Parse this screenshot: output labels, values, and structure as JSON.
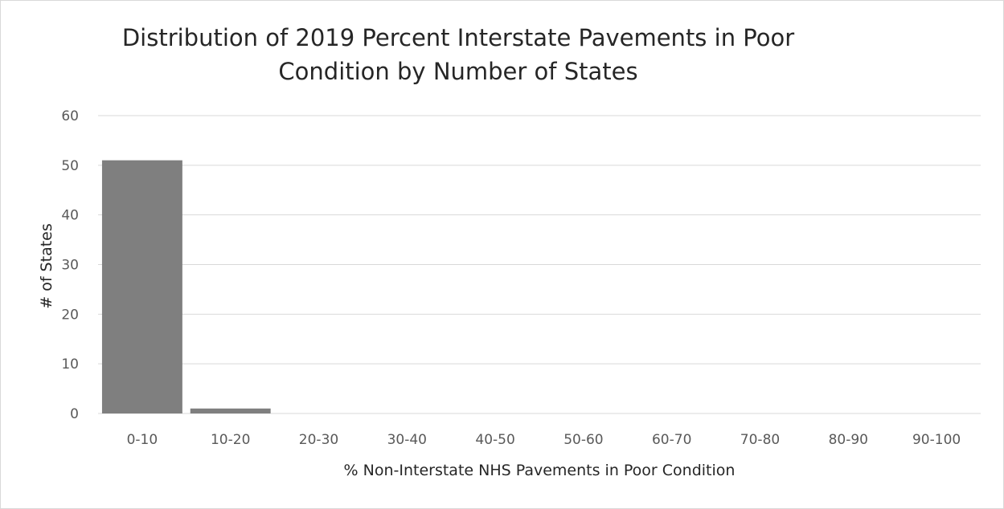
{
  "chart_data": {
    "type": "bar",
    "title_lines": [
      "Distribution of 2019 Percent Interstate Pavements in Poor",
      "Condition by Number of States"
    ],
    "xlabel": "% Non-Interstate NHS Pavements in Poor Condition",
    "ylabel": "# of States",
    "categories": [
      "0-10",
      "10-20",
      "20-30",
      "30-40",
      "40-50",
      "50-60",
      "60-70",
      "70-80",
      "80-90",
      "90-100"
    ],
    "values": [
      51,
      1,
      0,
      0,
      0,
      0,
      0,
      0,
      0,
      0
    ],
    "ylim": [
      0,
      60
    ],
    "yticks": [
      0,
      10,
      20,
      30,
      40,
      50,
      60
    ],
    "grid": true,
    "legend": "none",
    "bar_color": "#7f7f7f",
    "grid_color": "#d9d9d9"
  }
}
